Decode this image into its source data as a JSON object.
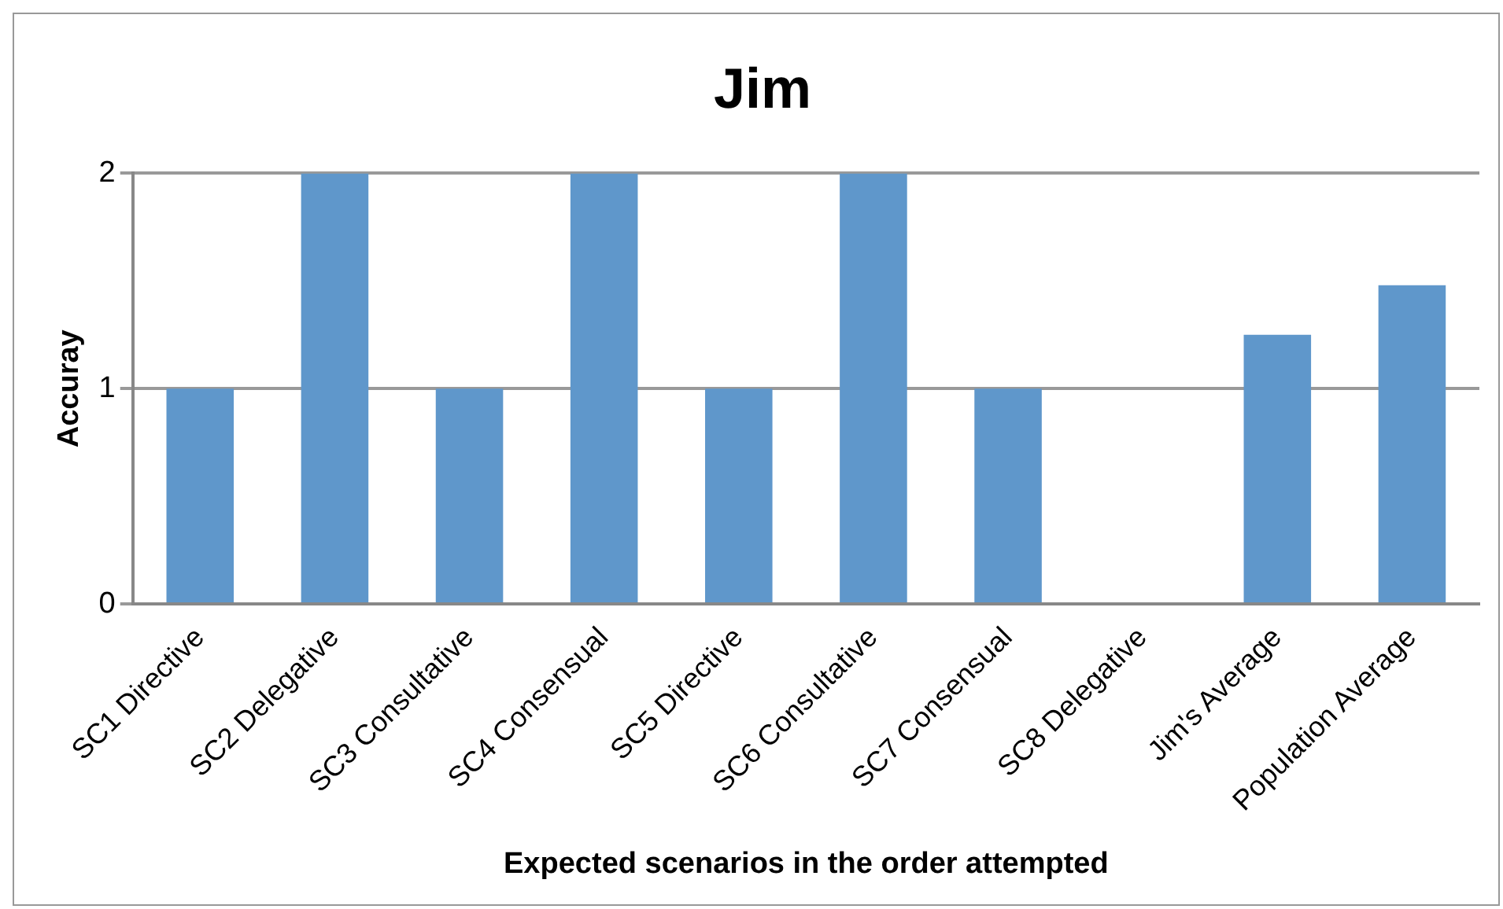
{
  "chart_data": {
    "type": "bar",
    "title": "Jim",
    "xlabel": "Expected scenarios in the order attempted",
    "ylabel": "Accuray",
    "categories": [
      "SC1 Directive",
      "SC2 Delegative",
      "SC3 Consultative",
      "SC4 Consensual",
      "SC5 Directive",
      "SC6 Consultative",
      "SC7 Consensual",
      "SC8 Delegative",
      "Jim's Average",
      "Population Average"
    ],
    "values": [
      1,
      2,
      1,
      2,
      1,
      2,
      1,
      0,
      1.25,
      1.48
    ],
    "color": "#5f97cb",
    "ylim": [
      0,
      2
    ],
    "yticks": [
      0,
      1,
      2
    ],
    "grid": "y"
  }
}
